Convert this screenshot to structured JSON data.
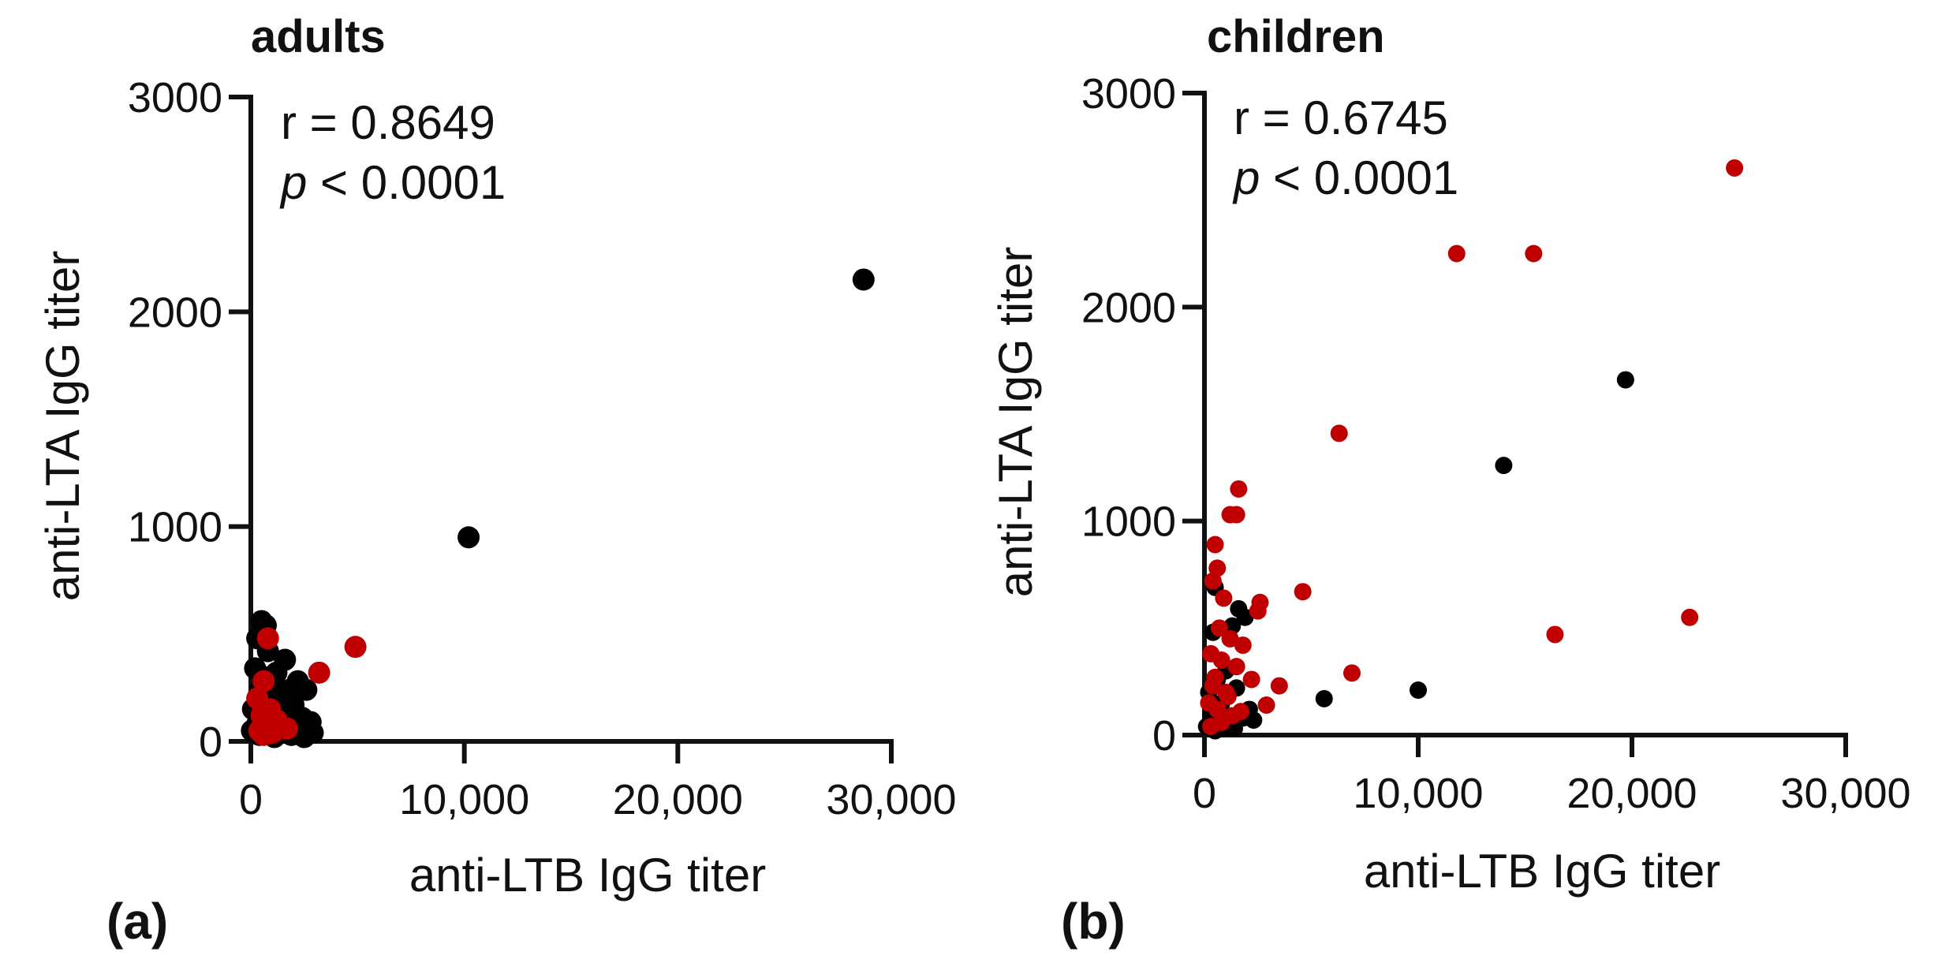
{
  "chart_data": [
    {
      "type": "scatter",
      "panel_label": "(a)",
      "title": "adults",
      "xlabel": "anti-LTB IgG titer",
      "ylabel": "anti-LTA IgG titer",
      "xlim": [
        0,
        30000
      ],
      "ylim": [
        0,
        3000
      ],
      "xticks": [
        0,
        10000,
        20000,
        30000
      ],
      "xtick_labels": [
        "0",
        "10,000",
        "20,000",
        "30,000"
      ],
      "yticks": [
        0,
        1000,
        2000,
        3000
      ],
      "ytick_labels": [
        "0",
        "1000",
        "2000",
        "3000"
      ],
      "stats": {
        "r": "r = 0.8649",
        "p_symbol": "p",
        "p_value": " < 0.0001"
      },
      "series": [
        {
          "name": "black",
          "color": "#000000",
          "radius": 14,
          "points": [
            [
              28700,
              2150
            ],
            [
              10200,
              950
            ],
            [
              500,
              560
            ],
            [
              700,
              540
            ],
            [
              300,
              480
            ],
            [
              800,
              420
            ],
            [
              1600,
              380
            ],
            [
              200,
              340
            ],
            [
              1200,
              320
            ],
            [
              600,
              300
            ],
            [
              2200,
              280
            ],
            [
              1000,
              260
            ],
            [
              1800,
              240
            ],
            [
              2600,
              240
            ],
            [
              400,
              230
            ],
            [
              1400,
              200
            ],
            [
              800,
              180
            ],
            [
              2000,
              170
            ],
            [
              100,
              150
            ],
            [
              1200,
              140
            ],
            [
              600,
              120
            ],
            [
              2400,
              110
            ],
            [
              1700,
              100
            ],
            [
              2800,
              90
            ],
            [
              300,
              80
            ],
            [
              1000,
              70
            ],
            [
              2100,
              60
            ],
            [
              50,
              50
            ],
            [
              700,
              40
            ],
            [
              1500,
              40
            ],
            [
              2900,
              40
            ],
            [
              400,
              30
            ],
            [
              1100,
              20
            ],
            [
              1900,
              30
            ],
            [
              2500,
              20
            ]
          ]
        },
        {
          "name": "red",
          "color": "#c00000",
          "radius": 14,
          "points": [
            [
              4900,
              440
            ],
            [
              3200,
              320
            ],
            [
              800,
              480
            ],
            [
              600,
              280
            ],
            [
              300,
              200
            ],
            [
              900,
              150
            ],
            [
              500,
              120
            ],
            [
              1200,
              100
            ],
            [
              700,
              80
            ],
            [
              1700,
              60
            ],
            [
              400,
              50
            ],
            [
              1000,
              40
            ],
            [
              600,
              30
            ]
          ]
        }
      ]
    },
    {
      "type": "scatter",
      "panel_label": "(b)",
      "title": "children",
      "xlabel": "anti-LTB IgG titer",
      "ylabel": "anti-LTA IgG titer",
      "xlim": [
        0,
        30000
      ],
      "ylim": [
        0,
        3000
      ],
      "xticks": [
        0,
        10000,
        20000,
        30000
      ],
      "xtick_labels": [
        "0",
        "10,000",
        "20,000",
        "30,000"
      ],
      "yticks": [
        0,
        1000,
        2000,
        3000
      ],
      "ytick_labels": [
        "0",
        "1000",
        "2000",
        "3000"
      ],
      "stats": {
        "r": "r = 0.6745",
        "p_symbol": "p",
        "p_value": " < 0.0001"
      },
      "series": [
        {
          "name": "black",
          "color": "#000000",
          "radius": 11,
          "points": [
            [
              19700,
              1660
            ],
            [
              14000,
              1260
            ],
            [
              10000,
              210
            ],
            [
              5600,
              170
            ],
            [
              500,
              690
            ],
            [
              1600,
              590
            ],
            [
              1300,
              510
            ],
            [
              1900,
              550
            ],
            [
              400,
              480
            ],
            [
              1000,
              300
            ],
            [
              600,
              260
            ],
            [
              200,
              200
            ],
            [
              1500,
              220
            ],
            [
              800,
              150
            ],
            [
              2100,
              120
            ],
            [
              300,
              100
            ],
            [
              1200,
              90
            ],
            [
              700,
              60
            ],
            [
              1800,
              80
            ],
            [
              100,
              40
            ],
            [
              900,
              30
            ],
            [
              2300,
              70
            ],
            [
              500,
              20
            ],
            [
              1400,
              30
            ]
          ]
        },
        {
          "name": "red",
          "color": "#c00000",
          "radius": 11,
          "points": [
            [
              24800,
              2650
            ],
            [
              11800,
              2250
            ],
            [
              15400,
              2250
            ],
            [
              6300,
              1410
            ],
            [
              1600,
              1150
            ],
            [
              1200,
              1030
            ],
            [
              1500,
              1030
            ],
            [
              500,
              890
            ],
            [
              4600,
              670
            ],
            [
              2600,
              620
            ],
            [
              600,
              780
            ],
            [
              400,
              720
            ],
            [
              900,
              640
            ],
            [
              2500,
              580
            ],
            [
              22700,
              550
            ],
            [
              16400,
              470
            ],
            [
              700,
              500
            ],
            [
              1200,
              450
            ],
            [
              1800,
              420
            ],
            [
              300,
              380
            ],
            [
              800,
              350
            ],
            [
              1500,
              320
            ],
            [
              6900,
              290
            ],
            [
              2200,
              260
            ],
            [
              3500,
              230
            ],
            [
              400,
              230
            ],
            [
              1000,
              200
            ],
            [
              2900,
              140
            ],
            [
              200,
              150
            ],
            [
              600,
              120
            ],
            [
              1300,
              90
            ],
            [
              800,
              60
            ],
            [
              300,
              40
            ],
            [
              1700,
              110
            ],
            [
              500,
              270
            ],
            [
              1100,
              180
            ]
          ]
        }
      ]
    }
  ]
}
